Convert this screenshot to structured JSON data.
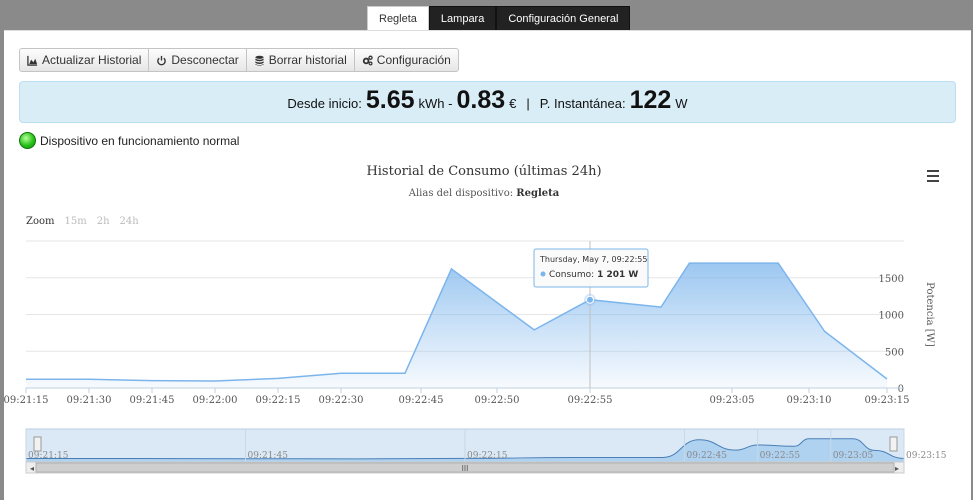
{
  "tabs": [
    {
      "label": "Regleta",
      "active": true
    },
    {
      "label": "Lampara",
      "active": false
    },
    {
      "label": "Configuración General",
      "active": false
    }
  ],
  "toolbar": {
    "update_label": "Actualizar Historial",
    "disconnect_label": "Desconectar",
    "clear_label": "Borrar historial",
    "config_label": "Configuración"
  },
  "summary": {
    "since_label": "Desde inicio:",
    "kwh_value": "5.65",
    "kwh_unit": "kWh -",
    "eur_value": "0.83",
    "eur_unit": "€",
    "sep": "|",
    "inst_label": "P. Instantánea:",
    "inst_value": "122",
    "inst_unit": "W"
  },
  "status": {
    "text": "Dispositivo en funcionamiento normal",
    "color": "#27c21b"
  },
  "zoom": {
    "label": "Zoom",
    "options": [
      "15m",
      "2h",
      "24h"
    ]
  },
  "tooltip": {
    "date": "Thursday, May 7, 09:22:55",
    "series": "Consumo",
    "value": "1 201 W"
  },
  "colors": {
    "series": "#7cb5ec",
    "tab_bg": "#222222",
    "summary_bg": "#d9edf7"
  },
  "chart_data": {
    "type": "area",
    "title": "Historial de Consumo (últimas 24h)",
    "subtitle_label": "Alias del dispositivo:",
    "subtitle_value": "Regleta",
    "ylabel": "Potencia [W]",
    "ylim": [
      0,
      2000
    ],
    "yticks": [
      0,
      500,
      1000,
      1500
    ],
    "grid": true,
    "x_ticks": [
      "09:21:15",
      "09:21:30",
      "09:21:45",
      "09:22:00",
      "09:22:15",
      "09:22:30",
      "09:22:45",
      "09:22:50",
      "09:22:55",
      "09:23:05",
      "09:23:10",
      "09:23:15"
    ],
    "series": [
      {
        "name": "Consumo",
        "points": [
          [
            "09:21:15",
            120
          ],
          [
            "09:21:30",
            118
          ],
          [
            "09:21:45",
            100
          ],
          [
            "09:22:00",
            95
          ],
          [
            "09:22:15",
            130
          ],
          [
            "09:22:30",
            200
          ],
          [
            "09:22:42",
            200
          ],
          [
            "09:22:47",
            1620
          ],
          [
            "09:22:52",
            790
          ],
          [
            "09:22:55",
            1201
          ],
          [
            "09:23:00",
            1100
          ],
          [
            "09:23:02",
            1700
          ],
          [
            "09:23:08",
            1700
          ],
          [
            "09:23:11",
            770
          ],
          [
            "09:23:15",
            122
          ]
        ]
      }
    ],
    "navigator_ticks": [
      "09:21:15",
      "09:21:45",
      "09:22:15",
      "09:22:45",
      "09:22:55",
      "09:23:05",
      "09:23:15"
    ]
  }
}
